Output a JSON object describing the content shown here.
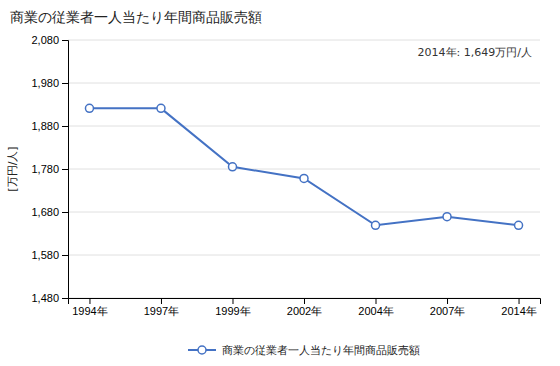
{
  "chart_data": {
    "type": "line",
    "title": "商業の従業者一人当たり年間商品販売額",
    "y_label": "[万円/人]",
    "annotation": "2014年: 1,649万円/人",
    "categories": [
      "1994年",
      "1997年",
      "1999年",
      "2002年",
      "2004年",
      "2007年",
      "2014年"
    ],
    "series": [
      {
        "name": "商業の従業者一人当たり年間商品販売額",
        "color": "#4472C4",
        "marker": "circle",
        "values": [
          1921,
          1921,
          1785,
          1758,
          1649,
          1669,
          1649
        ]
      }
    ],
    "ylim": [
      1480,
      2080
    ],
    "yticks": [
      {
        "value": 1480,
        "label": "1,480"
      },
      {
        "value": 1580,
        "label": "1,580"
      },
      {
        "value": 1680,
        "label": "1,680"
      },
      {
        "value": 1780,
        "label": "1,780"
      },
      {
        "value": 1880,
        "label": "1,880"
      },
      {
        "value": 1980,
        "label": "1,980"
      },
      {
        "value": 2080,
        "label": "2,080"
      }
    ],
    "grid": true,
    "legend": "bottom"
  }
}
